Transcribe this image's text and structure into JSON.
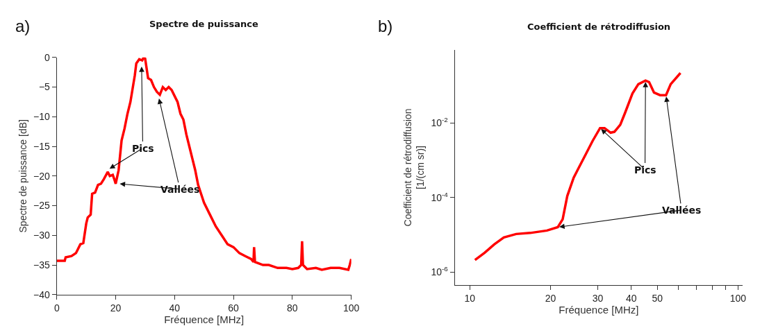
{
  "chart_data": [
    {
      "type": "line",
      "title": "Spectre de puissance",
      "xlabel": "Fréquence [MHz]",
      "ylabel": "Spectre de puissance [dB]",
      "xlim": [
        0,
        100
      ],
      "ylim": [
        -40,
        0
      ],
      "xticks": [
        0,
        20,
        40,
        60,
        80,
        100
      ],
      "yticks": [
        -40,
        -35,
        -30,
        -25,
        -20,
        -15,
        -10,
        -5,
        0
      ],
      "marker": "none",
      "line_style": "solid",
      "annotations": [
        "a)",
        {
          "text": "Pics",
          "x": 28.8,
          "y": -1.3
        },
        {
          "text": "Vallées",
          "x": 34.6,
          "y": -6.7
        }
      ],
      "series": [
        {
          "color": "#ff0000",
          "x": [
            0,
            2.7,
            3,
            5,
            6.5,
            7,
            8,
            9,
            10,
            10.5,
            11.5,
            12,
            13,
            14,
            15,
            16,
            17.3,
            18,
            19,
            19.5,
            20,
            21,
            22,
            23,
            24,
            25,
            26,
            26.5,
            27,
            28,
            29,
            29.5,
            30,
            31,
            32,
            33,
            34,
            35,
            36,
            37,
            38,
            39,
            40,
            41,
            42,
            43,
            44,
            45,
            46,
            47,
            48,
            49,
            50,
            52,
            54,
            56,
            58,
            60,
            62,
            64,
            66,
            66.8,
            67,
            67.3,
            70,
            72,
            75,
            78,
            80,
            82,
            83,
            83.3,
            83.6,
            85,
            88,
            90,
            93,
            96,
            99,
            99.5,
            100
          ],
          "values": [
            -34.3,
            -34.3,
            -33.7,
            -33.5,
            -33,
            -32.5,
            -31.5,
            -31.3,
            -28,
            -27,
            -26.5,
            -23,
            -22.8,
            -21.5,
            -21.3,
            -20.5,
            -19.3,
            -20,
            -19.8,
            -20.5,
            -21.3,
            -19,
            -14,
            -12,
            -9.5,
            -7.5,
            -4.5,
            -3,
            -1,
            -0.3,
            -0.5,
            0,
            -0.2,
            -3.5,
            -3.8,
            -5,
            -5.8,
            -6.3,
            -5,
            -5.5,
            -5,
            -5.5,
            -6.5,
            -7.5,
            -9.5,
            -10.5,
            -13,
            -15,
            -17,
            -19,
            -21.5,
            -23,
            -24.5,
            -26.5,
            -28.5,
            -30,
            -31.5,
            -32,
            -33,
            -33.5,
            -34,
            -34.5,
            -32,
            -34.5,
            -35,
            -35,
            -35.5,
            -35.5,
            -35.7,
            -35.5,
            -35,
            -31,
            -35,
            -35.7,
            -35.5,
            -35.8,
            -35.5,
            -35.5,
            -35.8,
            -35,
            -34
          ]
        }
      ]
    },
    {
      "type": "line",
      "title": "Coefficient de rétrodiffusion",
      "xlabel": "Fréquence [MHz]",
      "ylabel": "Coefficient de rétrodiffusion\n[1/(cm sr)]",
      "log": "xy",
      "xlim": [
        8.8,
        104
      ],
      "ylim": [
        4.4e-07,
        0.93
      ],
      "xticks": [
        10,
        20,
        30,
        40,
        50,
        {
          "value": 60,
          "label": null
        },
        {
          "value": 70,
          "label": null
        },
        {
          "value": 80,
          "label": null
        },
        {
          "value": 90,
          "label": null
        },
        100
      ],
      "yticks": [
        {
          "value": 1e-06,
          "label": "10$^{-6}$"
        },
        {
          "value": 0.0001,
          "label": "10$^{-4}$"
        },
        {
          "value": 0.01,
          "label": "10$^{-2}$"
        }
      ],
      "marker": "none",
      "line_style": "solid",
      "annotations": [
        "b)",
        {
          "text": "Pics",
          "x": 45.2,
          "y": 0.138
        },
        {
          "text": "Vallées",
          "x": 53.9,
          "y": 0.056
        }
      ],
      "series": [
        {
          "color": "#ff0000",
          "x": [
            10.46,
            11.37,
            12.34,
            13.4,
            14.9,
            16.8,
            19.4,
            21.3,
            22.2,
            23.1,
            24.4,
            25.4,
            27.0,
            28.7,
            30.6,
            31.8,
            33.5,
            34.6,
            36.4,
            37.9,
            40.4,
            42.5,
            45.2,
            46.6,
            48.6,
            51.2,
            53.9,
            56.1,
            61.0
          ],
          "values": [
            2.1e-06,
            3.3e-06,
            5.5e-06,
            8.5e-06,
            1.05e-05,
            1.12e-05,
            1.3e-05,
            1.6e-05,
            2.6e-05,
            0.00011,
            0.00034,
            0.0006,
            0.0014,
            0.0033,
            0.0073,
            0.0073,
            0.0055,
            0.0058,
            0.009,
            0.0185,
            0.062,
            0.11,
            0.138,
            0.126,
            0.066,
            0.056,
            0.056,
            0.11,
            0.22
          ]
        }
      ]
    }
  ]
}
